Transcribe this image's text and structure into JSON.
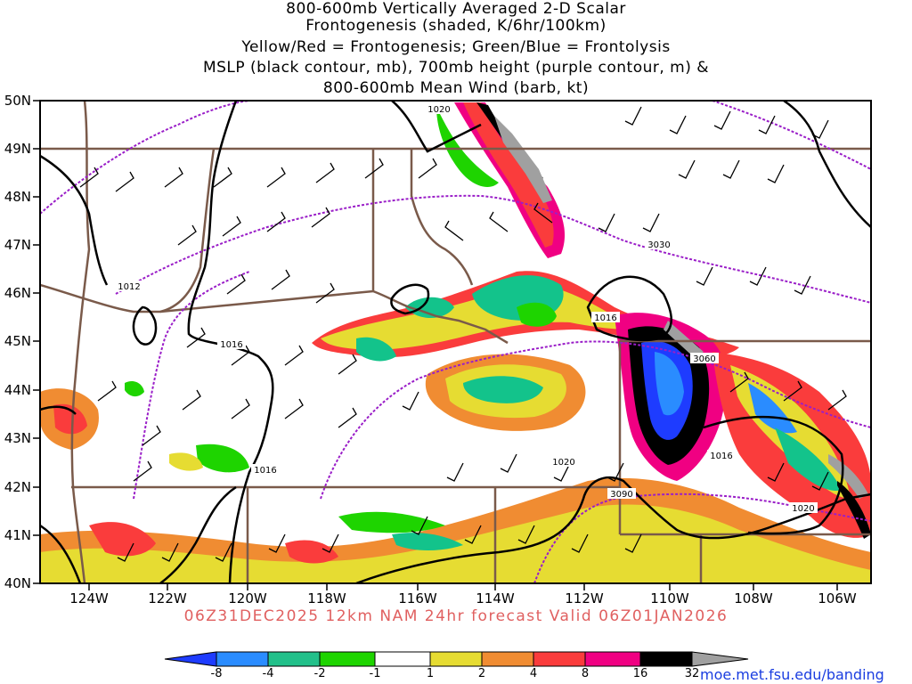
{
  "title": {
    "lines": [
      "800-600mb Vertically Averaged 2-D Scalar",
      "Frontogenesis (shaded, K/6hr/100km)",
      "Yellow/Red = Frontogenesis;  Green/Blue = Frontolysis",
      "MSLP (black contour, mb), 700mb height (purple contour, m) &",
      "800-600mb Mean Wind (barb, kt)"
    ]
  },
  "axes": {
    "lat_labels": [
      "50N",
      "49N",
      "48N",
      "47N",
      "46N",
      "45N",
      "44N",
      "43N",
      "42N",
      "41N",
      "40N"
    ],
    "lon_labels": [
      "124W",
      "122W",
      "120W",
      "118W",
      "116W",
      "114W",
      "112W",
      "110W",
      "108W",
      "106W"
    ]
  },
  "contour_labels": {
    "mslp": [
      "1020",
      "1012",
      "1016",
      "1016",
      "1016",
      "1016",
      "1020",
      "1020"
    ],
    "height": [
      "3030",
      "3060",
      "3090"
    ]
  },
  "valid_text": "06Z31DEC2025 12km NAM 24hr forecast Valid 06Z01JAN2026",
  "colorbar": {
    "labels": [
      "-8",
      "-4",
      "-2",
      "-1",
      "1",
      "2",
      "4",
      "8",
      "16",
      "32"
    ],
    "colors": [
      "#1e3cff",
      "#2a8cff",
      "#22c08a",
      "#13c38b",
      "#1ed400",
      "#ffffff",
      "#e6dc32",
      "#f08c32",
      "#fa3c3c",
      "#f00082",
      "#000000",
      "#a0a0a0"
    ]
  },
  "credit": "moe.met.fsu.edu/banding",
  "colors": {
    "mslp": "#000000",
    "height": "#9a1ec8",
    "borders": "#7a5a4a",
    "valid_text": "#e06060",
    "credit": "#1a3de0"
  }
}
